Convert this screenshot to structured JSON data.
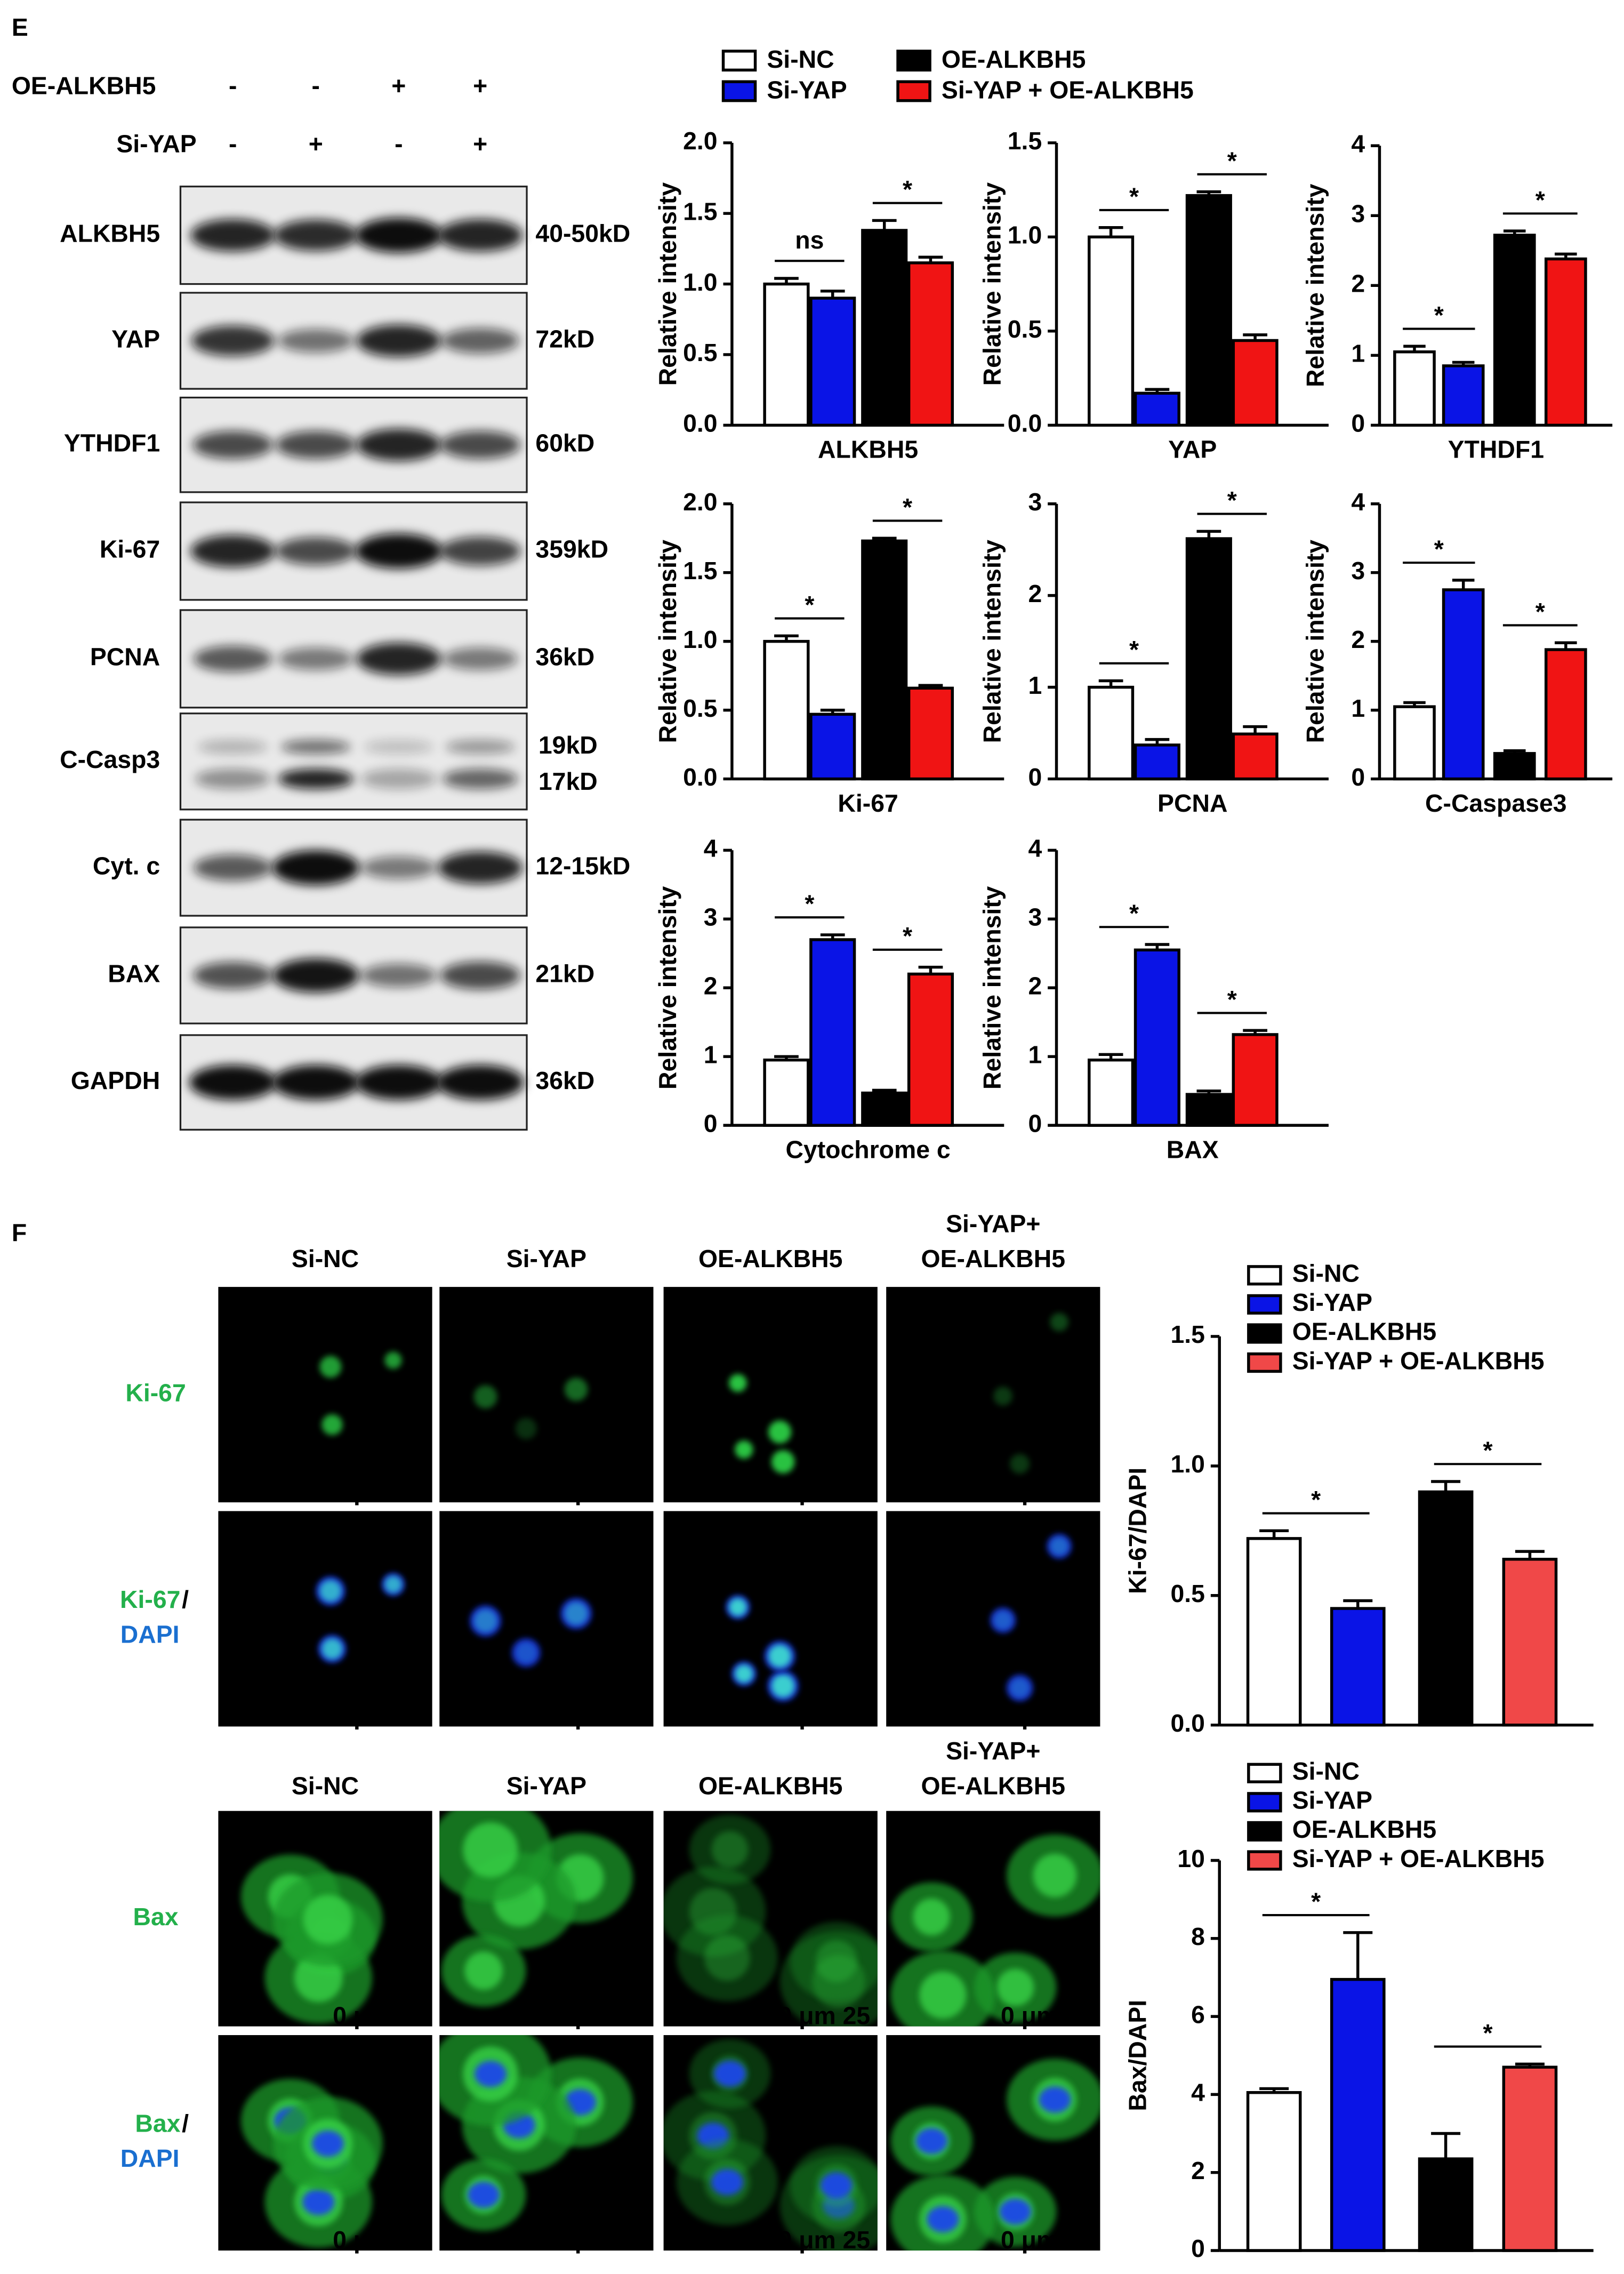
{
  "panels": [
    "E",
    "F"
  ],
  "blot": {
    "header": [
      {
        "label": "OE-ALKBH5",
        "signs": [
          "-",
          "-",
          "+",
          "+"
        ]
      },
      {
        "label": "Si-YAP",
        "signs": [
          "-",
          "+",
          "-",
          "+"
        ]
      }
    ],
    "rows": [
      {
        "label": "ALKBH5",
        "size": [
          "40-50kD"
        ]
      },
      {
        "label": "YAP",
        "size": [
          "72kD"
        ]
      },
      {
        "label": "YTHDF1",
        "size": [
          "60kD"
        ]
      },
      {
        "label": "Ki-67",
        "size": [
          "359kD"
        ]
      },
      {
        "label": "PCNA",
        "size": [
          "36kD"
        ]
      },
      {
        "label": "C-Casp3",
        "size": [
          "19kD",
          "17kD"
        ]
      },
      {
        "label": "Cyt. c",
        "size": [
          "12-15kD"
        ]
      },
      {
        "label": "BAX",
        "size": [
          "21kD"
        ]
      },
      {
        "label": "GAPDH",
        "size": [
          "36kD"
        ]
      }
    ]
  },
  "legend": [
    {
      "name": "Si-NC",
      "color": "#ffffff"
    },
    {
      "name": "Si-YAP",
      "color": "#0a14e6"
    },
    {
      "name": "OE-ALKBH5",
      "color": "#000000"
    },
    {
      "name": "Si-YAP + OE-ALKBH5",
      "color": "#f01414"
    }
  ],
  "microscopy": {
    "scale_bar": "0 μm 25",
    "sections": [
      {
        "columns": [
          [
            "Si-NC"
          ],
          [
            "Si-YAP"
          ],
          [
            "OE-ALKBH5"
          ],
          [
            "Si-YAP+",
            "OE-ALKBH5"
          ]
        ],
        "rows": [
          [
            "Ki-67"
          ],
          [
            "Ki-67",
            "/",
            "DAPI"
          ]
        ]
      },
      {
        "columns": [
          [
            "Si-NC"
          ],
          [
            "Si-YAP"
          ],
          [
            "OE-ALKBH5"
          ],
          [
            "Si-YAP+",
            "OE-ALKBH5"
          ]
        ],
        "rows": [
          [
            "Bax"
          ],
          [
            "Bax",
            "/",
            "DAPI"
          ]
        ]
      }
    ]
  },
  "chart_data": [
    {
      "type": "bar",
      "xlabel": "ALKBH5",
      "ylabel": "Relative intensity",
      "values": [
        1.0,
        0.9,
        1.38,
        1.15
      ],
      "errors": [
        0.04,
        0.05,
        0.07,
        0.04
      ],
      "colors": [
        "#ffffff",
        "#0a14e6",
        "#000000",
        "#f01414"
      ],
      "ylim": [
        0,
        2
      ],
      "yticks": [
        {
          "value": 0,
          "label": "0.0"
        },
        0.5,
        {
          "value": 1,
          "label": "1.0"
        },
        1.5,
        {
          "value": 2,
          "label": "2.0"
        }
      ],
      "annotations": [
        "ns",
        "*"
      ]
    },
    {
      "type": "bar",
      "xlabel": "YAP",
      "ylabel": "Relative intensity",
      "values": [
        1.0,
        0.17,
        1.22,
        0.45
      ],
      "errors": [
        0.05,
        0.02,
        0.02,
        0.03
      ],
      "colors": [
        "#ffffff",
        "#0a14e6",
        "#000000",
        "#f01414"
      ],
      "ylim": [
        0,
        1.5
      ],
      "yticks": [
        {
          "value": 0,
          "label": "0.0"
        },
        0.5,
        {
          "value": 1,
          "label": "1.0"
        },
        1.5
      ],
      "annotations": [
        "*",
        "*"
      ]
    },
    {
      "type": "bar",
      "xlabel": "YTHDF1",
      "ylabel": "Relative intensity",
      "values": [
        1.05,
        0.85,
        2.72,
        2.38
      ],
      "errors": [
        0.08,
        0.05,
        0.06,
        0.07
      ],
      "colors": [
        "#ffffff",
        "#0a14e6",
        "#000000",
        "#f01414"
      ],
      "ylim": [
        0,
        4
      ],
      "yticks": [
        0,
        1,
        2,
        3,
        4
      ],
      "annotations": [
        "*",
        "*"
      ]
    },
    {
      "type": "bar",
      "xlabel": "Ki-67",
      "ylabel": "Relative intensity",
      "values": [
        1.0,
        0.47,
        1.73,
        0.66
      ],
      "errors": [
        0.04,
        0.03,
        0.02,
        0.02
      ],
      "colors": [
        "#ffffff",
        "#0a14e6",
        "#000000",
        "#f01414"
      ],
      "ylim": [
        0,
        2
      ],
      "yticks": [
        {
          "value": 0,
          "label": "0.0"
        },
        0.5,
        {
          "value": 1,
          "label": "1.0"
        },
        1.5,
        {
          "value": 2,
          "label": "2.0"
        }
      ],
      "annotations": [
        "*",
        "*"
      ]
    },
    {
      "type": "bar",
      "xlabel": "PCNA",
      "ylabel": "Relative intensity",
      "values": [
        1.0,
        0.37,
        2.62,
        0.49
      ],
      "errors": [
        0.07,
        0.06,
        0.08,
        0.08
      ],
      "colors": [
        "#ffffff",
        "#0a14e6",
        "#000000",
        "#f01414"
      ],
      "ylim": [
        0,
        3
      ],
      "yticks": [
        0,
        1,
        2,
        3
      ],
      "annotations": [
        "*",
        "*"
      ]
    },
    {
      "type": "bar",
      "xlabel": "C-Caspase3",
      "ylabel": "Relative intensity",
      "values": [
        1.05,
        2.75,
        0.37,
        1.88
      ],
      "errors": [
        0.06,
        0.14,
        0.04,
        0.1
      ],
      "colors": [
        "#ffffff",
        "#0a14e6",
        "#000000",
        "#f01414"
      ],
      "ylim": [
        0,
        4
      ],
      "yticks": [
        0,
        1,
        2,
        3,
        4
      ],
      "annotations": [
        "*",
        "*"
      ]
    },
    {
      "type": "bar",
      "xlabel": "Cytochrome c",
      "ylabel": "Relative intensity",
      "values": [
        0.95,
        2.7,
        0.47,
        2.2
      ],
      "errors": [
        0.05,
        0.07,
        0.04,
        0.1
      ],
      "colors": [
        "#ffffff",
        "#0a14e6",
        "#000000",
        "#f01414"
      ],
      "ylim": [
        0,
        4
      ],
      "yticks": [
        0,
        1,
        2,
        3,
        4
      ],
      "annotations": [
        "*",
        "*"
      ]
    },
    {
      "type": "bar",
      "xlabel": "BAX",
      "ylabel": "Relative intensity",
      "values": [
        0.95,
        2.55,
        0.45,
        1.32
      ],
      "errors": [
        0.08,
        0.08,
        0.05,
        0.06
      ],
      "colors": [
        "#ffffff",
        "#0a14e6",
        "#000000",
        "#f01414"
      ],
      "ylim": [
        0,
        4
      ],
      "yticks": [
        0,
        1,
        2,
        3,
        4
      ],
      "annotations": [
        "*",
        "*"
      ]
    },
    {
      "type": "bar",
      "ylabel": "Ki-67/DAPI",
      "legend": [
        "Si-NC",
        "Si-YAP",
        "OE-ALKBH5",
        "Si-YAP + OE-ALKBH5"
      ],
      "values": [
        0.72,
        0.45,
        0.9,
        0.64
      ],
      "errors": [
        0.03,
        0.03,
        0.04,
        0.03
      ],
      "colors": [
        "#ffffff",
        "#0a14e6",
        "#000000",
        "#f04848"
      ],
      "ylim": [
        0,
        1.5
      ],
      "yticks": [
        {
          "value": 0,
          "label": "0.0"
        },
        0.5,
        {
          "value": 1,
          "label": "1.0"
        },
        1.5
      ],
      "annotations": [
        "*",
        "*"
      ]
    },
    {
      "type": "bar",
      "ylabel": "Bax/DAPI",
      "legend": [
        "Si-NC",
        "Si-YAP",
        "OE-ALKBH5",
        "Si-YAP + OE-ALKBH5"
      ],
      "values": [
        4.05,
        6.95,
        2.35,
        4.7
      ],
      "errors": [
        0.1,
        1.2,
        0.65,
        0.08
      ],
      "colors": [
        "#ffffff",
        "#0a14e6",
        "#000000",
        "#f04848"
      ],
      "ylim": [
        0,
        10
      ],
      "yticks": [
        0,
        2,
        4,
        6,
        8,
        10
      ],
      "annotations": [
        "*",
        "*"
      ]
    }
  ]
}
